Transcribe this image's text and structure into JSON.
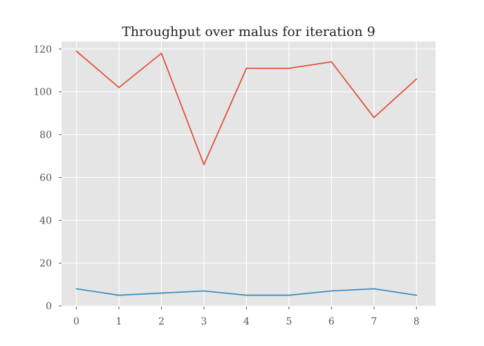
{
  "chart_data": {
    "type": "line",
    "title": "Throughput over malus for iteration 9",
    "xlabel": "",
    "ylabel": "",
    "x": [
      0,
      1,
      2,
      3,
      4,
      5,
      6,
      7,
      8
    ],
    "xlim": [
      -0.35,
      8.45
    ],
    "ylim": [
      -0.3,
      123.5
    ],
    "x_ticks": [
      0,
      1,
      2,
      3,
      4,
      5,
      6,
      7,
      8
    ],
    "y_ticks": [
      0,
      20,
      40,
      60,
      80,
      100,
      120
    ],
    "grid": true,
    "style": "ggplot",
    "series": [
      {
        "color": "#e24a33",
        "values": [
          119,
          102,
          118,
          66,
          111,
          111,
          114,
          88,
          106
        ]
      },
      {
        "color": "#348abd",
        "values": [
          8,
          5,
          6,
          7,
          5,
          5,
          7,
          8,
          5
        ]
      }
    ],
    "colors": {
      "plot_background": "#e5e5e5",
      "grid": "#ffffff",
      "tick_text": "#555555",
      "title_text": "#222222"
    }
  }
}
